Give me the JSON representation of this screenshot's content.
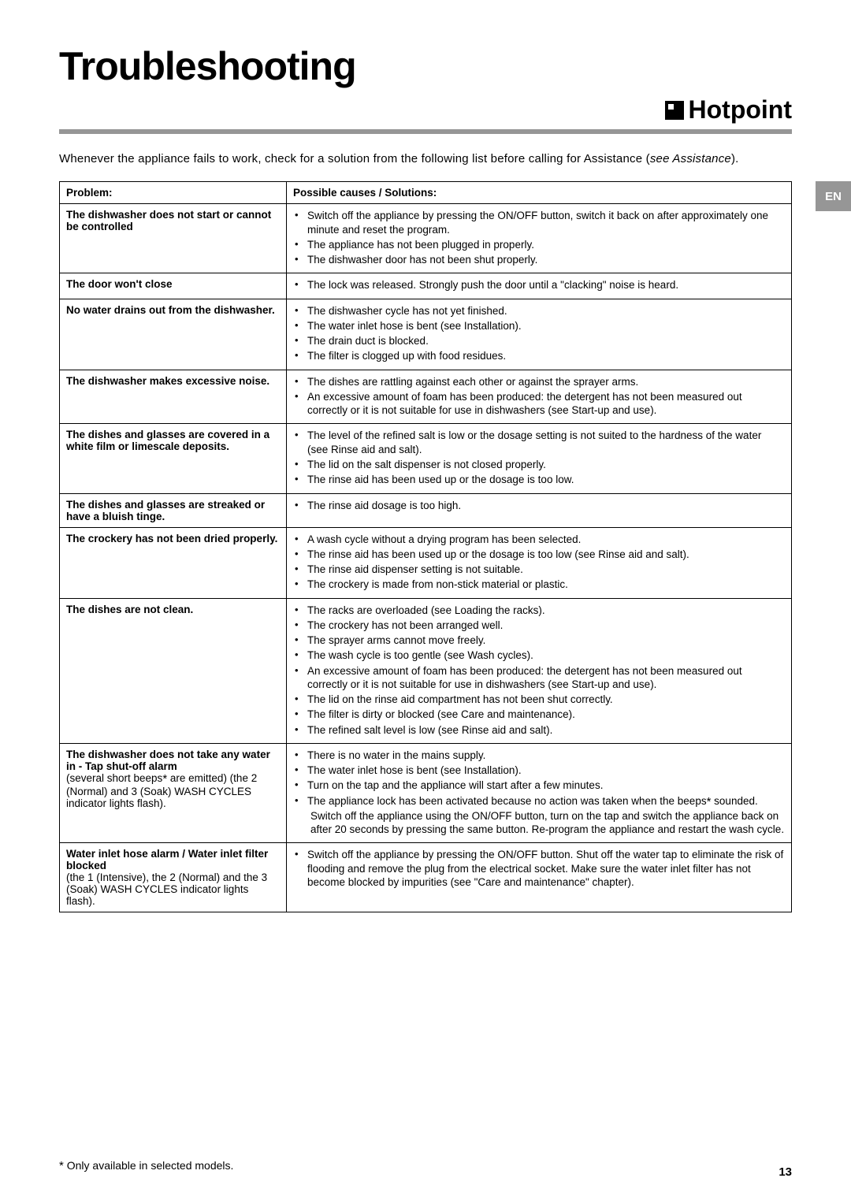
{
  "page": {
    "title": "Troubleshooting",
    "brand_icon": "hotpoint-icon",
    "brand_name": "Hotpoint",
    "lang_tab": "EN",
    "page_number": "13",
    "intro_pre": "Whenever the appliance fails to work, check for a solution from the following list before calling for Assistance (",
    "intro_italic": "see Assistance",
    "intro_post": ").",
    "footnote_star": "*",
    "footnote_text": " Only available in selected models."
  },
  "table": {
    "header_problem": "Problem:",
    "header_solution": "Possible causes / Solutions:",
    "rows": [
      {
        "problem": "The dishwasher does not start or cannot be controlled",
        "bullets": [
          "Switch off the appliance by pressing the ON/OFF button, switch it back on after approximately one minute and reset the program.",
          "The appliance has not been plugged in properly.",
          "The dishwasher door has not been shut properly."
        ]
      },
      {
        "problem": "The door won't close",
        "bullets": [
          "The lock was released. Strongly push the door until a \"clacking\" noise is heard."
        ]
      },
      {
        "problem": "No water drains out from the dishwasher.",
        "bullets": [
          "The dishwasher cycle has not yet finished.",
          "The water inlet hose is bent (see Installation).",
          "The drain duct is blocked.",
          "The filter is clogged up with food residues."
        ]
      },
      {
        "problem": "The dishwasher makes excessive noise.",
        "bullets": [
          "The dishes are rattling against each other or against the sprayer arms.",
          "An excessive amount of foam has been produced: the detergent has not been measured out correctly or it is not suitable for use in dishwashers (see Start-up and use)."
        ]
      },
      {
        "problem": "The dishes and glasses are covered in a white film or limescale deposits.",
        "bullets": [
          "The level of the refined salt is low or the dosage setting is not suited to the hardness of the water (see Rinse aid and salt).",
          "The lid on the salt dispenser is not closed properly.",
          "The rinse aid has been used up or the dosage is too low."
        ]
      },
      {
        "problem": "The dishes and glasses are streaked or have a bluish tinge.",
        "bullets": [
          "The rinse aid dosage is too high."
        ]
      },
      {
        "problem": "The crockery has not been dried properly.",
        "bullets": [
          "A wash cycle without a drying program has been selected.",
          "The rinse aid has been used up or the dosage is too low (see Rinse aid and salt).",
          "The rinse aid dispenser setting is not suitable.",
          "The crockery is made from non-stick material or plastic."
        ]
      },
      {
        "problem": "The dishes are not clean.",
        "bullets": [
          "The racks are overloaded (see Loading the racks).",
          "The crockery has not been arranged well.",
          "The sprayer arms cannot move freely.",
          "The wash cycle is too gentle (see Wash cycles).",
          "An excessive amount of foam has been produced: the detergent has not been measured out correctly or it is not suitable for use in dishwashers (see Start-up and use).",
          "The lid on the rinse aid compartment has not been shut correctly.",
          "The filter is dirty or blocked (see Care and maintenance).",
          "The refined salt level is low (see Rinse aid and salt)."
        ]
      },
      {
        "problem_html": "The dishwasher does not take any water in - Tap shut-off alarm<br><span class=\"normal-weight\">(several short beeps<span class=\"star\">*</span> are emitted) (the 2 (Normal) and 3 (Soak) WASH CYCLES indicator lights flash).</span>",
        "bullets_html": [
          "There is no water in the mains supply.",
          "The water inlet hose is bent (see Installation).",
          "Turn on the tap and the appliance will start after a few minutes.",
          "The appliance lock has been activated because no action was taken when the beeps<span class=\"star\">*</span> sounded.<span class=\"subline\">Switch off the appliance using the ON/OFF button, turn on the tap and switch the appliance back on after 20 seconds by pressing the same button. Re-program the appliance and restart the wash cycle.</span>"
        ]
      },
      {
        "problem_html": "Water inlet hose alarm / Water inlet filter blocked<br><span class=\"normal-weight\">(the 1 (Intensive), the 2 (Normal) and the 3 (Soak) WASH CYCLES indicator lights flash).</span>",
        "bullets": [
          "Switch off the appliance by pressing the ON/OFF button. Shut off the water tap to eliminate the risk of flooding and remove the plug from the electrical socket. Make sure the water inlet filter has not become blocked by impurities (see \"Care and maintenance\" chapter)."
        ]
      }
    ]
  }
}
